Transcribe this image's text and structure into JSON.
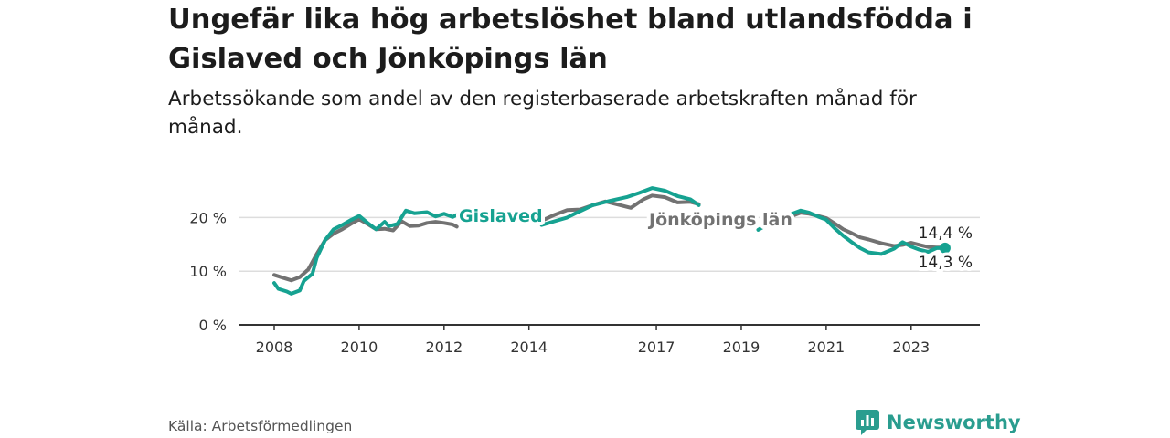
{
  "title": "Ungefär lika hög arbetslöshet bland utlandsfödda i Gislaved och Jönköpings län",
  "subtitle": "Arbetssökande som andel av den registerbaserade arbetskraften månad för månad.",
  "source": "Källa: Arbetsförmedlingen",
  "brand": "Newsworthy",
  "colors": {
    "gislaved": "#16a291",
    "jonkoping": "#727272",
    "grid": "#dddddd",
    "axis": "#333333",
    "brand": "#2a9d8f"
  },
  "chart_data": {
    "type": "line",
    "title": "Ungefär lika hög arbetslöshet bland utlandsfödda i Gislaved och Jönköpings län",
    "xlabel": "",
    "ylabel": "",
    "xlim": [
      2008,
      2024.5
    ],
    "ylim": [
      0,
      25
    ],
    "y_ticks": [
      0,
      10,
      20
    ],
    "y_tick_labels": [
      "0 %",
      "10 %",
      "20 %"
    ],
    "x_ticks": [
      2008,
      2010,
      2012,
      2014,
      2017,
      2019,
      2021,
      2023
    ],
    "x_tick_labels": [
      "2008",
      "2010",
      "2012",
      "2014",
      "2017",
      "2019",
      "2021",
      "2023"
    ],
    "series": [
      {
        "name": "Gislaved",
        "label": "Gislaved",
        "end_label": "14,3 %",
        "x": [
          2008.0,
          2008.1,
          2008.3,
          2008.4,
          2008.6,
          2008.7,
          2008.9,
          2009.0,
          2009.2,
          2009.4,
          2009.6,
          2009.8,
          2010.0,
          2010.2,
          2010.4,
          2010.6,
          2010.7,
          2010.9,
          2011.1,
          2011.3,
          2011.6,
          2011.8,
          2012.0,
          2012.2,
          2012.3,
          2014.3,
          2014.6,
          2014.9,
          2015.1,
          2015.5,
          2015.9,
          2016.3,
          2016.6,
          2016.9,
          2017.2,
          2017.5,
          2017.8,
          2018.0,
          2019.4,
          2019.6,
          2020.2,
          2020.4,
          2020.6,
          2020.8,
          2021.0,
          2021.2,
          2021.4,
          2021.6,
          2021.8,
          2022.0,
          2022.3,
          2022.6,
          2022.8,
          2023.0,
          2023.2,
          2023.4,
          2023.6,
          2023.8
        ],
        "values": [
          7.8,
          6.7,
          6.2,
          5.8,
          6.4,
          8.2,
          9.5,
          12.5,
          15.8,
          17.8,
          18.6,
          19.5,
          20.3,
          19.0,
          17.8,
          19.2,
          18.4,
          18.8,
          21.3,
          20.8,
          21.0,
          20.2,
          20.7,
          20.1,
          20.5,
          18.6,
          19.3,
          20.0,
          20.8,
          22.3,
          23.1,
          23.8,
          24.6,
          25.5,
          25.0,
          24.0,
          23.4,
          22.3,
          17.7,
          18.6,
          20.7,
          21.3,
          20.9,
          20.2,
          19.6,
          18.0,
          16.6,
          15.4,
          14.3,
          13.5,
          13.2,
          14.2,
          15.4,
          14.6,
          14.0,
          13.6,
          14.3,
          14.3
        ]
      },
      {
        "name": "Jönköpings län",
        "label": "Jönköpings län",
        "end_label": "14,4 %",
        "x": [
          2008.0,
          2008.2,
          2008.4,
          2008.6,
          2008.8,
          2009.0,
          2009.2,
          2009.4,
          2009.6,
          2009.8,
          2010.0,
          2010.2,
          2010.4,
          2010.6,
          2010.8,
          2011.0,
          2011.2,
          2011.4,
          2011.6,
          2011.8,
          2012.0,
          2012.2,
          2012.3,
          2014.3,
          2014.6,
          2014.9,
          2015.2,
          2015.5,
          2015.8,
          2016.1,
          2016.4,
          2016.7,
          2016.9,
          2017.2,
          2017.5,
          2017.8,
          2018.0,
          2020.2,
          2020.4,
          2020.6,
          2020.8,
          2021.0,
          2021.2,
          2021.4,
          2021.6,
          2021.8,
          2022.0,
          2022.3,
          2022.6,
          2022.8,
          2023.0,
          2023.2,
          2023.4,
          2023.6,
          2023.8
        ],
        "values": [
          9.3,
          8.8,
          8.3,
          8.9,
          10.3,
          13.2,
          15.8,
          17.0,
          17.8,
          18.8,
          19.7,
          18.8,
          17.8,
          17.9,
          17.6,
          19.3,
          18.4,
          18.5,
          19.0,
          19.2,
          19.0,
          18.7,
          18.3,
          19.4,
          20.5,
          21.4,
          21.5,
          22.3,
          23.0,
          22.4,
          21.8,
          23.4,
          24.1,
          23.8,
          22.8,
          22.9,
          22.5,
          20.3,
          20.9,
          20.7,
          20.3,
          19.9,
          18.9,
          17.8,
          17.1,
          16.3,
          15.9,
          15.2,
          14.7,
          14.9,
          15.3,
          14.9,
          14.5,
          14.4,
          14.4
        ]
      }
    ]
  }
}
